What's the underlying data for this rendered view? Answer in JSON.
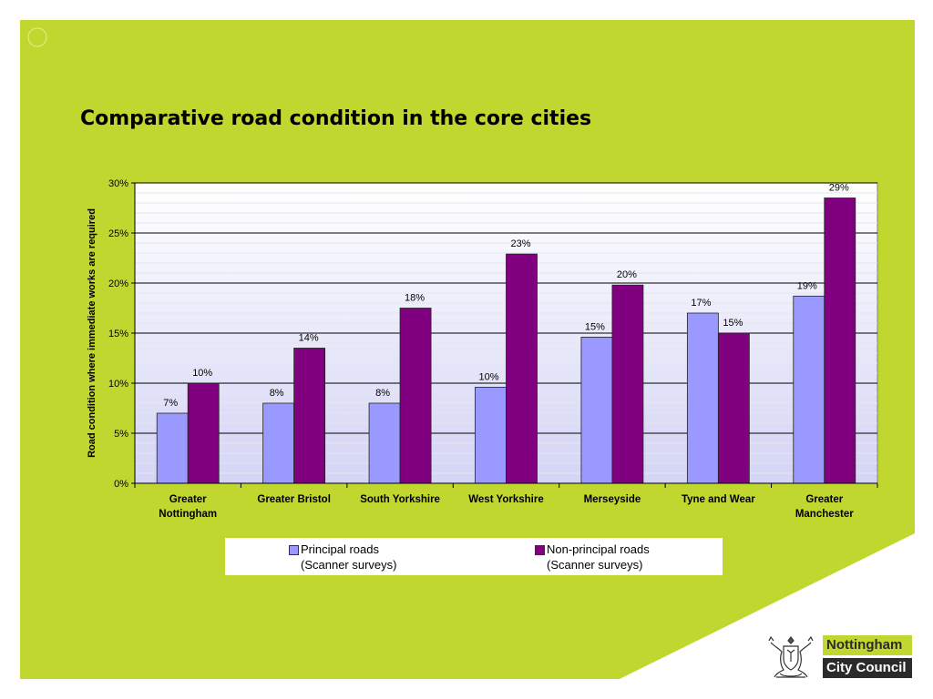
{
  "slide": {
    "title": "Comparative road condition in the core cities",
    "background_color": "#c0d730"
  },
  "logo": {
    "line1": "Nottingham",
    "line2": "City Council",
    "icon": "coat-of-arms-icon"
  },
  "chart_data": {
    "type": "bar",
    "title": "",
    "ylabel": "Road condition where immediate works are required",
    "xlabel": "",
    "ylim": [
      0,
      30
    ],
    "y_ticks": [
      "0%",
      "5%",
      "10%",
      "15%",
      "20%",
      "25%",
      "30%"
    ],
    "y_tick_values": [
      0,
      5,
      10,
      15,
      20,
      25,
      30
    ],
    "categories": [
      [
        "Greater",
        "Nottingham"
      ],
      [
        "Greater Bristol"
      ],
      [
        "South Yorkshire"
      ],
      [
        "West Yorkshire"
      ],
      [
        "Merseyside"
      ],
      [
        "Tyne and Wear"
      ],
      [
        "Greater",
        "Manchester"
      ]
    ],
    "series": [
      {
        "name": "Principal roads (Scanner surveys)",
        "legend_lines": [
          "Principal roads",
          "(Scanner surveys)"
        ],
        "color": "#9999ff",
        "values": [
          7,
          8,
          8,
          9.6,
          14.6,
          17,
          18.7
        ],
        "labels": [
          "7%",
          "8%",
          "8%",
          "10%",
          "15%",
          "17%",
          "19%"
        ]
      },
      {
        "name": "Non-principal roads (Scanner surveys)",
        "legend_lines": [
          "Non-principal roads",
          "(Scanner surveys)"
        ],
        "color": "#800080",
        "values": [
          10,
          13.5,
          17.5,
          22.9,
          19.8,
          15,
          28.5
        ],
        "labels": [
          "10%",
          "14%",
          "18%",
          "23%",
          "20%",
          "15%",
          "29%"
        ]
      }
    ],
    "grid": true,
    "legend": "bottom"
  }
}
